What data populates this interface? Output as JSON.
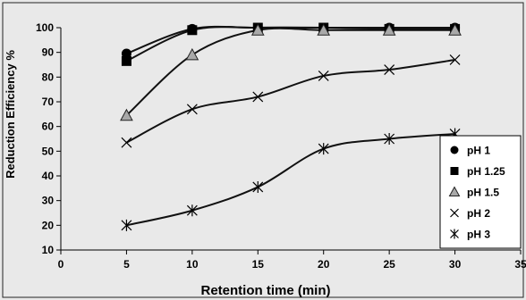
{
  "chart_data": {
    "type": "scatter",
    "xlabel": "Retention time (min)",
    "ylabel": "Reduction Efficiency %",
    "xlim": [
      0,
      35
    ],
    "ylim": [
      10,
      100
    ],
    "x_ticks": [
      "0",
      "5",
      "10",
      "15",
      "20",
      "25",
      "30",
      "35"
    ],
    "y_ticks": [
      "10",
      "20",
      "30",
      "40",
      "50",
      "60",
      "70",
      "80",
      "90",
      "100"
    ],
    "legend_position": "right",
    "grid": false,
    "series": [
      {
        "name": "pH 1",
        "marker": "circle",
        "x": [
          5,
          10,
          15,
          20,
          25,
          30
        ],
        "y": [
          89.5,
          99.5,
          100,
          100,
          100,
          100
        ]
      },
      {
        "name": "pH 1.25",
        "marker": "square",
        "x": [
          5,
          10,
          15,
          20,
          25,
          30
        ],
        "y": [
          86.5,
          99,
          100,
          100,
          99.5,
          99.5
        ]
      },
      {
        "name": "pH 1.5",
        "marker": "triangle",
        "x": [
          5,
          10,
          15,
          20,
          25,
          30
        ],
        "y": [
          64.5,
          89,
          99,
          99,
          99,
          99
        ]
      },
      {
        "name": "pH 2",
        "marker": "x",
        "x": [
          5,
          10,
          15,
          20,
          25,
          30
        ],
        "y": [
          53.5,
          67,
          72,
          80.5,
          83,
          87
        ]
      },
      {
        "name": "pH 3",
        "marker": "star",
        "x": [
          5,
          10,
          15,
          20,
          25,
          30
        ],
        "y": [
          20,
          26,
          35.5,
          51,
          55,
          57
        ]
      }
    ]
  }
}
